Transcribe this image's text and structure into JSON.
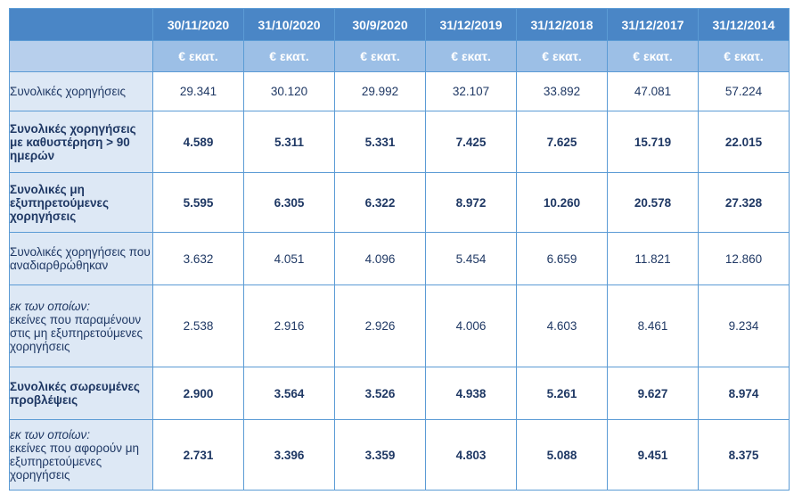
{
  "table": {
    "dates": [
      "30/11/2020",
      "31/10/2020",
      "30/9/2020",
      "31/12/2019",
      "31/12/2018",
      "31/12/2017",
      "31/12/2014"
    ],
    "units": [
      "€ εκατ.",
      "€ εκατ.",
      "€ εκατ.",
      "€ εκατ.",
      "€ εκατ.",
      "€ εκατ.",
      "€ εκατ."
    ],
    "rows": [
      {
        "label": "Συνολικές χορηγήσεις",
        "values": [
          "29.341",
          "30.120",
          "29.992",
          "32.107",
          "33.892",
          "47.081",
          "57.224"
        ]
      },
      {
        "label": "Συνολικές χορηγήσεις με καθυστέρηση > 90 ημερών",
        "values": [
          "4.589",
          "5.311",
          "5.331",
          "7.425",
          "7.625",
          "15.719",
          "22.015"
        ]
      },
      {
        "label": "Συνολικές μη εξυπηρετούμενες χορηγήσεις",
        "values": [
          "5.595",
          "6.305",
          "6.322",
          "8.972",
          "10.260",
          "20.578",
          "27.328"
        ]
      },
      {
        "label": "Συνολικές χορηγήσεις που αναδιαρθρώθηκαν",
        "values": [
          "3.632",
          "4.051",
          "4.096",
          "5.454",
          "6.659",
          "11.821",
          "12.860"
        ]
      },
      {
        "label_em": "εκ των οποίων:",
        "label": "εκείνες που παραμένουν στις μη εξυπηρετούμενες χορηγήσεις",
        "values": [
          "2.538",
          "2.916",
          "2.926",
          "4.006",
          "4.603",
          "8.461",
          "9.234"
        ]
      },
      {
        "label": "Συνολικές σωρευμένες προβλέψεις",
        "values": [
          "2.900",
          "3.564",
          "3.526",
          "4.938",
          "5.261",
          "9.627",
          "8.974"
        ]
      },
      {
        "label_em": "εκ των οποίων:",
        "label": "εκείνες που αφορούν μη εξυπηρετούμενες χορηγήσεις",
        "values": [
          "2.731",
          "3.396",
          "3.359",
          "4.803",
          "5.088",
          "9.451",
          "8.375"
        ]
      }
    ]
  }
}
